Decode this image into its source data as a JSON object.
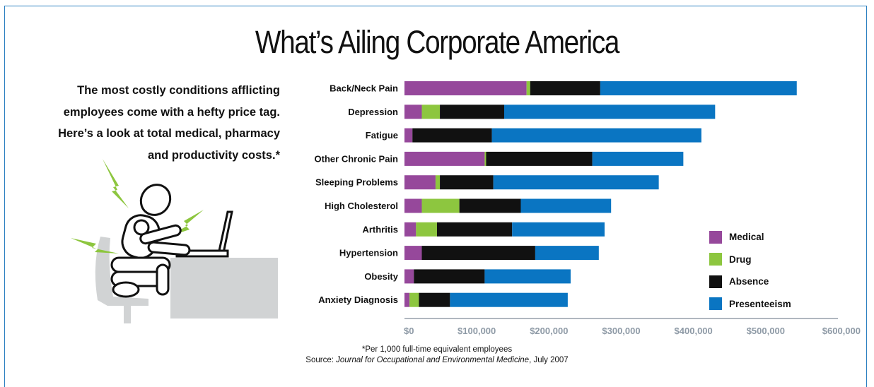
{
  "title": "What’s Ailing Corporate America",
  "intro_lines": [
    "The most costly conditions afflicting",
    "employees come with a hefty price tag.",
    "Here’s a look at total medical, pharmacy",
    "and productivity costs.*"
  ],
  "footnote": "*Per 1,000 full-time equivalent employees",
  "source": {
    "prefix": "Source: ",
    "journal": "Journal for Occupational and Environmental Medicine",
    "suffix": ", July 2007"
  },
  "colors": {
    "Medical": "#96489b",
    "Drug": "#8dc63f",
    "Absence": "#111111",
    "Presenteeism": "#0a75c2"
  },
  "chart_data": {
    "type": "bar",
    "orientation": "horizontal",
    "stacked": true,
    "categories": [
      "Back/Neck Pain",
      "Depression",
      "Fatigue",
      "Other Chronic Pain",
      "Sleeping Problems",
      "High Cholesterol",
      "Arthritis",
      "Hypertension",
      "Obesity",
      "Anxiety Diagnosis"
    ],
    "series": [
      {
        "name": "Medical",
        "values": [
          169000,
          24000,
          11000,
          111000,
          43000,
          24000,
          16000,
          24000,
          13000,
          7000
        ]
      },
      {
        "name": "Drug",
        "values": [
          5000,
          25000,
          0,
          2000,
          6000,
          52000,
          29000,
          0,
          0,
          13000
        ]
      },
      {
        "name": "Absence",
        "values": [
          97000,
          89000,
          110000,
          147000,
          74000,
          85000,
          104000,
          157000,
          98000,
          43000
        ]
      },
      {
        "name": "Presenteeism",
        "values": [
          272000,
          292000,
          290000,
          126000,
          229000,
          125000,
          128000,
          88000,
          119000,
          163000
        ]
      }
    ],
    "x_ticks": [
      "$0",
      "$100,000",
      "$200,000",
      "$300,000",
      "$400,000",
      "$500,000",
      "$600,000"
    ],
    "xlim": [
      0,
      600000
    ],
    "legend": [
      "Medical",
      "Drug",
      "Absence",
      "Presenteeism"
    ],
    "legend_position": "bottom-right",
    "grid": false
  }
}
